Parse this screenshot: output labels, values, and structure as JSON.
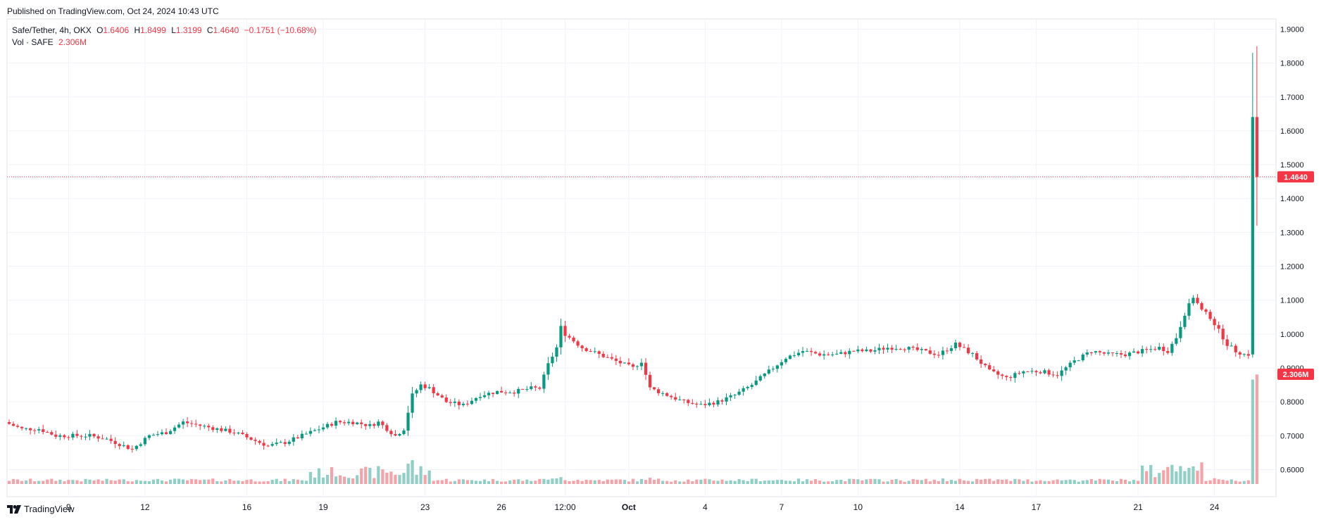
{
  "published": "Published on TradingView.com, Oct 24, 2024 10:43 UTC",
  "brand": "TradingView",
  "legend": {
    "symbol": "Safe/Tether, 4h, OKX",
    "open_label": "O",
    "open": "1.6406",
    "high_label": "H",
    "high": "1.8499",
    "low_label": "L",
    "low": "1.3199",
    "close_label": "C",
    "close": "1.4640",
    "change": "−0.1751 (−10.68%)",
    "vol_label": "Vol · SAFE",
    "vol": "2.306M"
  },
  "colors": {
    "up": "#089981",
    "down": "#f23645",
    "up_vol": "#8fcfc6",
    "down_vol": "#f5a3a8",
    "grid": "#f0f3fa",
    "axis_text": "#131722"
  },
  "chart_data": {
    "type": "candlestick",
    "interval": "4h",
    "ylim": [
      0.52,
      1.93
    ],
    "y_ticks": [
      0.6,
      0.7,
      0.8,
      0.9,
      1.0,
      1.1,
      1.2,
      1.3,
      1.4,
      1.5,
      1.6,
      1.7,
      1.8,
      1.9
    ],
    "y_tick_labels": [
      "0.6000",
      "0.7000",
      "0.8000",
      "0.9000",
      "1.0000",
      "1.1000",
      "1.2000",
      "1.3000",
      "1.4000",
      "1.5000",
      "1.6000",
      "1.7000",
      "1.8000",
      "1.9000"
    ],
    "x_ticks": [
      {
        "label": "9",
        "bar": 14
      },
      {
        "label": "12",
        "bar": 32
      },
      {
        "label": "16",
        "bar": 56
      },
      {
        "label": "19",
        "bar": 74
      },
      {
        "label": "23",
        "bar": 98
      },
      {
        "label": "26",
        "bar": 116
      },
      {
        "label": "12:00",
        "bar": 131
      },
      {
        "label": "Oct",
        "bar": 146,
        "bold": true
      },
      {
        "label": "4",
        "bar": 164
      },
      {
        "label": "7",
        "bar": 182
      },
      {
        "label": "10",
        "bar": 200
      },
      {
        "label": "14",
        "bar": 224
      },
      {
        "label": "17",
        "bar": 242
      },
      {
        "label": "21",
        "bar": 266
      },
      {
        "label": "24",
        "bar": 284
      }
    ],
    "last_price": 1.464,
    "last_price_label": "1.4640",
    "last_volume_label": "2.306M",
    "price_anchors": [
      [
        0,
        0.74
      ],
      [
        4,
        0.72
      ],
      [
        8,
        0.72
      ],
      [
        12,
        0.7
      ],
      [
        16,
        0.7
      ],
      [
        20,
        0.7
      ],
      [
        24,
        0.69
      ],
      [
        28,
        0.67
      ],
      [
        30,
        0.66
      ],
      [
        34,
        0.7
      ],
      [
        38,
        0.71
      ],
      [
        42,
        0.74
      ],
      [
        46,
        0.73
      ],
      [
        50,
        0.72
      ],
      [
        54,
        0.71
      ],
      [
        58,
        0.69
      ],
      [
        62,
        0.67
      ],
      [
        66,
        0.68
      ],
      [
        70,
        0.7
      ],
      [
        74,
        0.72
      ],
      [
        78,
        0.74
      ],
      [
        82,
        0.74
      ],
      [
        86,
        0.73
      ],
      [
        88,
        0.74
      ],
      [
        90,
        0.72
      ],
      [
        92,
        0.7
      ],
      [
        94,
        0.72
      ],
      [
        96,
        0.82
      ],
      [
        98,
        0.85
      ],
      [
        100,
        0.84
      ],
      [
        104,
        0.8
      ],
      [
        108,
        0.79
      ],
      [
        112,
        0.82
      ],
      [
        116,
        0.83
      ],
      [
        120,
        0.83
      ],
      [
        124,
        0.84
      ],
      [
        126,
        0.84
      ],
      [
        128,
        0.91
      ],
      [
        130,
        0.96
      ],
      [
        131,
        1.02
      ],
      [
        132,
        1.0
      ],
      [
        136,
        0.96
      ],
      [
        140,
        0.94
      ],
      [
        144,
        0.92
      ],
      [
        148,
        0.9
      ],
      [
        150,
        0.92
      ],
      [
        152,
        0.84
      ],
      [
        156,
        0.82
      ],
      [
        160,
        0.8
      ],
      [
        164,
        0.79
      ],
      [
        168,
        0.8
      ],
      [
        172,
        0.82
      ],
      [
        176,
        0.85
      ],
      [
        180,
        0.89
      ],
      [
        184,
        0.93
      ],
      [
        188,
        0.95
      ],
      [
        192,
        0.94
      ],
      [
        196,
        0.94
      ],
      [
        200,
        0.95
      ],
      [
        204,
        0.95
      ],
      [
        208,
        0.96
      ],
      [
        212,
        0.96
      ],
      [
        216,
        0.95
      ],
      [
        220,
        0.94
      ],
      [
        224,
        0.97
      ],
      [
        228,
        0.94
      ],
      [
        232,
        0.89
      ],
      [
        236,
        0.87
      ],
      [
        240,
        0.89
      ],
      [
        244,
        0.89
      ],
      [
        248,
        0.88
      ],
      [
        252,
        0.92
      ],
      [
        256,
        0.95
      ],
      [
        260,
        0.94
      ],
      [
        264,
        0.94
      ],
      [
        268,
        0.95
      ],
      [
        272,
        0.96
      ],
      [
        274,
        0.95
      ],
      [
        276,
        0.99
      ],
      [
        278,
        1.06
      ],
      [
        280,
        1.11
      ],
      [
        282,
        1.07
      ],
      [
        284,
        1.05
      ],
      [
        286,
        1.01
      ],
      [
        288,
        0.97
      ],
      [
        290,
        0.95
      ],
      [
        292,
        0.94
      ],
      [
        293,
        0.94
      ]
    ],
    "final_bars": [
      {
        "o": 0.94,
        "h": 1.83,
        "l": 0.93,
        "c": 1.6406,
        "vol": 2.2
      },
      {
        "o": 1.6406,
        "h": 1.8499,
        "l": 1.3199,
        "c": 1.464,
        "vol": 2.306
      }
    ],
    "n_bars": 295
  }
}
